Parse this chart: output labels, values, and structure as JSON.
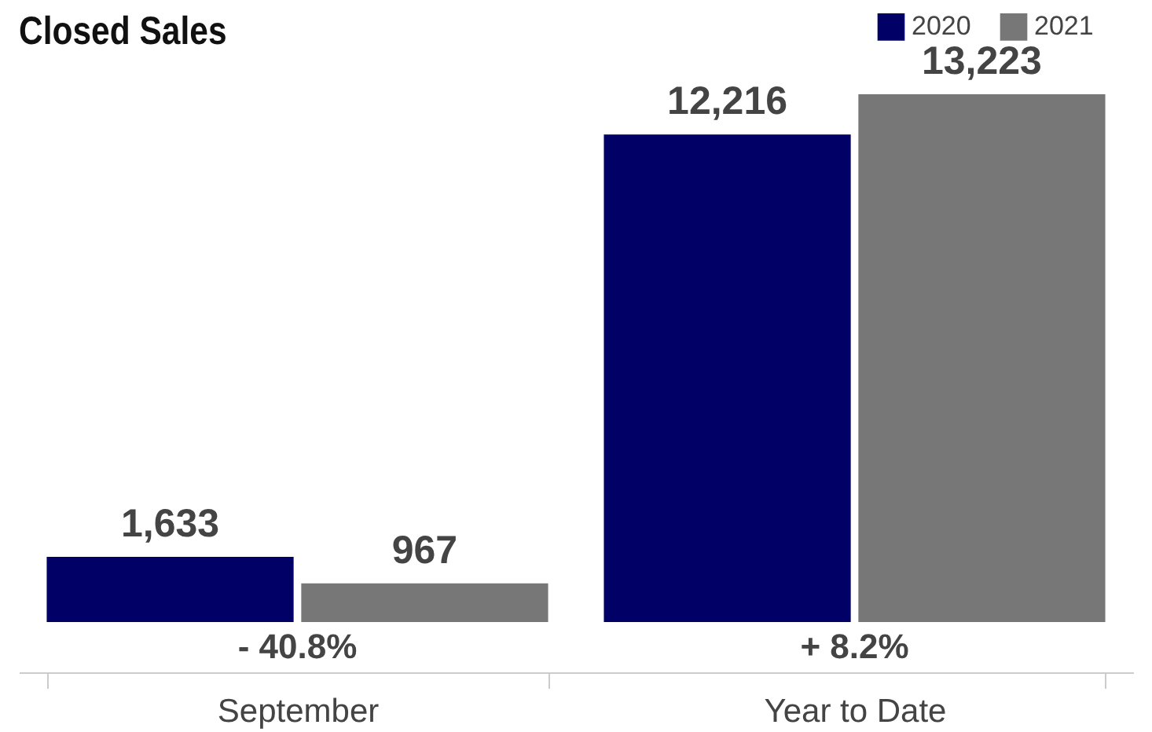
{
  "chart_data": {
    "type": "bar",
    "title": "Closed Sales",
    "categories": [
      "September",
      "Year to Date"
    ],
    "series": [
      {
        "name": "2020",
        "color": "#000066",
        "values": [
          1633,
          12216
        ],
        "value_labels": [
          "1,633",
          "12,216"
        ]
      },
      {
        "name": "2021",
        "color": "#777777",
        "values": [
          967,
          13223
        ],
        "value_labels": [
          "967",
          "13,223"
        ]
      }
    ],
    "legend": "top right",
    "annotations": [
      "- 40.8%",
      "+ 8.2%"
    ]
  }
}
